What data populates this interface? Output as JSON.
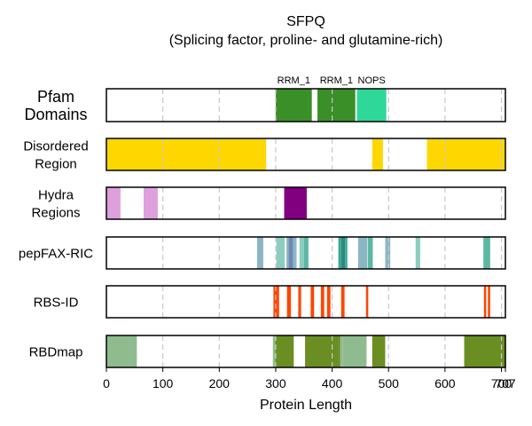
{
  "chart_data": {
    "type": "bar",
    "title": "SFPQ",
    "subtitle": "(Splicing factor, proline- and glutamine-rich)",
    "xlabel": "Protein Length",
    "xlim": [
      0,
      707
    ],
    "x_ticks": [
      0,
      100,
      200,
      300,
      400,
      500,
      600,
      700,
      707
    ],
    "x_tick_labels": [
      "0",
      "100",
      "200",
      "300",
      "400",
      "500",
      "600",
      "700",
      "707"
    ],
    "grid": "vertical dashed",
    "tracks": [
      {
        "name": "Pfam Domains",
        "label_lines": [
          "Pfam",
          "Domains"
        ],
        "segments": [
          {
            "start": 300,
            "end": 364,
            "color": "#3a8f28",
            "label": "RRM_1"
          },
          {
            "start": 374,
            "end": 441,
            "color": "#3a8f28",
            "label": "RRM_1"
          },
          {
            "start": 444,
            "end": 496,
            "color": "#2ed898",
            "label": "NOPS"
          }
        ]
      },
      {
        "name": "Disordered Region",
        "label_lines": [
          "Disordered",
          "Region"
        ],
        "segments": [
          {
            "start": 0,
            "end": 283,
            "color": "#ffd700"
          },
          {
            "start": 471,
            "end": 490,
            "color": "#ffd700"
          },
          {
            "start": 568,
            "end": 707,
            "color": "#ffd700"
          }
        ]
      },
      {
        "name": "Hydra Regions",
        "label_lines": [
          "Hydra",
          "Regions"
        ],
        "segments": [
          {
            "start": 0,
            "end": 25,
            "color": "#dda0dd"
          },
          {
            "start": 66,
            "end": 91,
            "color": "#dda0dd"
          },
          {
            "start": 315,
            "end": 355,
            "color": "#800080"
          }
        ]
      },
      {
        "name": "pepFAX-RIC",
        "label_lines": [
          "pepFAX-RIC"
        ],
        "segments": [
          {
            "start": 267,
            "end": 278,
            "color": "#8db6c5"
          },
          {
            "start": 301,
            "end": 316,
            "color": "#8ccdbf"
          },
          {
            "start": 319,
            "end": 323,
            "color": "#8db6c5"
          },
          {
            "start": 323,
            "end": 331,
            "color": "#6d87b7"
          },
          {
            "start": 331,
            "end": 337,
            "color": "#8db6c5"
          },
          {
            "start": 342,
            "end": 350,
            "color": "#8ccdbf"
          },
          {
            "start": 350,
            "end": 358,
            "color": "#5bb8a4"
          },
          {
            "start": 411,
            "end": 416,
            "color": "#3ca695"
          },
          {
            "start": 416,
            "end": 423,
            "color": "#2a8a80"
          },
          {
            "start": 423,
            "end": 427,
            "color": "#3ca695"
          },
          {
            "start": 446,
            "end": 462,
            "color": "#8db6c5"
          },
          {
            "start": 463,
            "end": 472,
            "color": "#5bb8a4"
          },
          {
            "start": 494,
            "end": 503,
            "color": "#8db6c5"
          },
          {
            "start": 548,
            "end": 556,
            "color": "#8ccdbf"
          },
          {
            "start": 668,
            "end": 680,
            "color": "#5bb8a4"
          }
        ]
      },
      {
        "name": "RBS-ID",
        "label_lines": [
          "RBS-ID"
        ],
        "segments": [
          {
            "start": 296,
            "end": 306,
            "color": "#ff4500"
          },
          {
            "start": 320,
            "end": 327,
            "color": "#ff4500"
          },
          {
            "start": 340,
            "end": 345,
            "color": "#ff4500"
          },
          {
            "start": 362,
            "end": 368,
            "color": "#ff4500"
          },
          {
            "start": 380,
            "end": 386,
            "color": "#ff4500"
          },
          {
            "start": 391,
            "end": 397,
            "color": "#ff4500"
          },
          {
            "start": 416,
            "end": 422,
            "color": "#ff4500"
          },
          {
            "start": 460,
            "end": 464,
            "color": "#ff4500"
          },
          {
            "start": 669,
            "end": 673,
            "color": "#ff4500"
          },
          {
            "start": 676,
            "end": 680,
            "color": "#ff4500"
          }
        ]
      },
      {
        "name": "RBDmap",
        "label_lines": [
          "RBDmap"
        ],
        "segments": [
          {
            "start": 0,
            "end": 54,
            "color": "#8fbc8f"
          },
          {
            "start": 295,
            "end": 299,
            "color": "#8fbc8f"
          },
          {
            "start": 299,
            "end": 332,
            "color": "#6b8e23"
          },
          {
            "start": 352,
            "end": 414,
            "color": "#6b8e23"
          },
          {
            "start": 414,
            "end": 419,
            "color": "#8fbc8f"
          },
          {
            "start": 419,
            "end": 461,
            "color": "#8fbc8f"
          },
          {
            "start": 471,
            "end": 494,
            "color": "#6b8e23"
          },
          {
            "start": 634,
            "end": 707,
            "color": "#6b8e23"
          }
        ]
      }
    ]
  }
}
